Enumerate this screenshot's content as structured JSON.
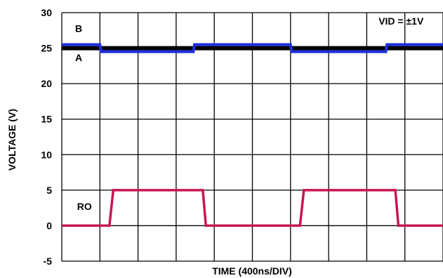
{
  "chart_data": {
    "type": "line",
    "xlabel": "TIME (400ns/DIV)",
    "ylabel": "VOLTAGE (V)",
    "ylim": [
      -5,
      30
    ],
    "xlim": [
      0,
      10
    ],
    "x_divisions": 10,
    "y_ticks": [
      "30",
      "25",
      "20",
      "15",
      "10",
      "5",
      "0",
      "-5"
    ],
    "y_tick_values": [
      30,
      25,
      20,
      15,
      10,
      5,
      0,
      -5
    ],
    "grid": true,
    "annotations": [
      {
        "text": "VID = ±1V",
        "x": 8.9,
        "y": 28.3
      },
      {
        "text": "B",
        "x": 0.35,
        "y": 27.3
      },
      {
        "text": "A",
        "x": 0.35,
        "y": 23.2
      },
      {
        "text": "RO",
        "x": 0.4,
        "y": 2.2
      }
    ],
    "series": [
      {
        "name": "A",
        "color": "#000000",
        "x": [
          0,
          10
        ],
        "y": [
          25,
          25
        ]
      },
      {
        "name": "B",
        "color": "#1f2de0",
        "x": [
          0,
          1.0,
          1.03,
          3.45,
          3.48,
          6.0,
          6.03,
          8.5,
          8.53,
          10
        ],
        "y": [
          25.5,
          25.5,
          24.5,
          24.5,
          25.5,
          25.5,
          24.5,
          24.5,
          25.5,
          25.5
        ]
      },
      {
        "name": "RO",
        "color": "#c8164f",
        "x": [
          0,
          1.25,
          1.35,
          3.7,
          3.78,
          6.25,
          6.35,
          8.75,
          8.83,
          10
        ],
        "y": [
          0,
          0,
          5,
          5,
          0,
          0,
          5,
          5,
          0,
          0
        ]
      }
    ]
  }
}
